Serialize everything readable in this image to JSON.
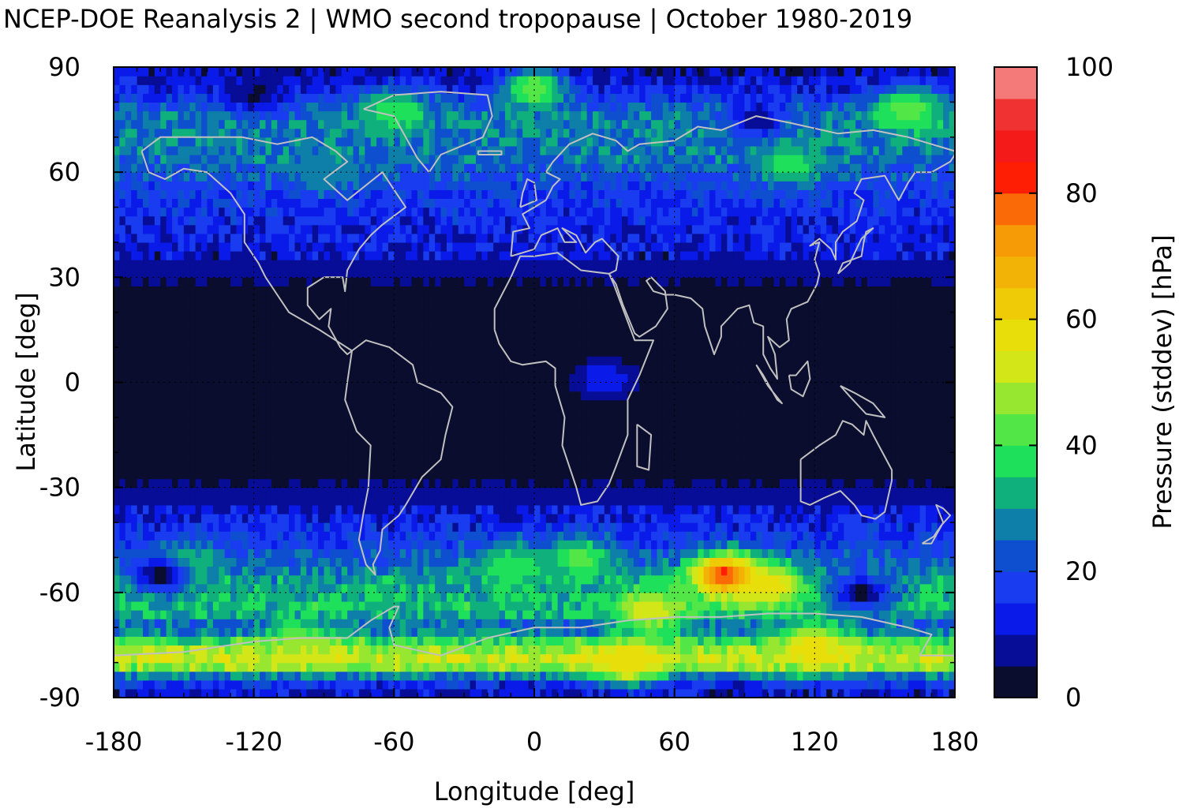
{
  "chart_data": {
    "type": "heatmap",
    "title": "NCEP-DOE Reanalysis 2 | WMO second tropopause | October 1980-2019",
    "xlabel": "Longitude [deg]",
    "ylabel": "Latitude [deg]",
    "colorbar_label": "Pressure (stddev) [hPa]",
    "xlim": [
      -180,
      180
    ],
    "ylim": [
      -90,
      90
    ],
    "x_ticks": [
      "-180",
      "-120",
      "-60",
      "0",
      "60",
      "120",
      "180"
    ],
    "y_ticks": [
      "90",
      "60",
      "30",
      "0",
      "-30",
      "-60",
      "-90"
    ],
    "colorbar_range": [
      0,
      100
    ],
    "colorbar_ticks": [
      "100",
      "80",
      "60",
      "40",
      "20",
      "0"
    ],
    "colorbar_step": 5,
    "colorbar_colors": [
      "#0b0d2e",
      "#070d96",
      "#0a1ae8",
      "#1a3cf0",
      "#0e4fd0",
      "#0d7fa8",
      "#10b07c",
      "#1fe05a",
      "#52e646",
      "#97e630",
      "#d2e618",
      "#e8df0a",
      "#eecb06",
      "#f2b206",
      "#f69a06",
      "#fa6a06",
      "#fe1e04",
      "#f41a1a",
      "#f03232",
      "#f47a7a",
      "#fcc8c8"
    ],
    "grid": true,
    "coastline_color": "#c0c0c0",
    "field_zonal_profile": [
      {
        "lat": -90,
        "value": 8
      },
      {
        "lat": -85,
        "value": 18
      },
      {
        "lat": -80,
        "value": 55
      },
      {
        "lat": -75,
        "value": 45
      },
      {
        "lat": -70,
        "value": 22
      },
      {
        "lat": -65,
        "value": 35
      },
      {
        "lat": -60,
        "value": 32
      },
      {
        "lat": -55,
        "value": 30
      },
      {
        "lat": -50,
        "value": 22
      },
      {
        "lat": -45,
        "value": 18
      },
      {
        "lat": -40,
        "value": 14
      },
      {
        "lat": -35,
        "value": 10
      },
      {
        "lat": -30,
        "value": 6
      },
      {
        "lat": -25,
        "value": 2
      },
      {
        "lat": 0,
        "value": 1
      },
      {
        "lat": 25,
        "value": 2
      },
      {
        "lat": 30,
        "value": 6
      },
      {
        "lat": 35,
        "value": 10
      },
      {
        "lat": 45,
        "value": 14
      },
      {
        "lat": 55,
        "value": 18
      },
      {
        "lat": 65,
        "value": 26
      },
      {
        "lat": 75,
        "value": 28
      },
      {
        "lat": 85,
        "value": 12
      },
      {
        "lat": 90,
        "value": 8
      }
    ],
    "field_hotspots": [
      {
        "lon": 82,
        "lat": -55,
        "value": 85
      },
      {
        "lon": 100,
        "lat": -58,
        "value": 60
      },
      {
        "lon": 50,
        "lat": -65,
        "value": 55
      },
      {
        "lon": 40,
        "lat": -80,
        "value": 60
      },
      {
        "lon": 120,
        "lat": -75,
        "value": 58
      },
      {
        "lon": -100,
        "lat": -75,
        "value": 50
      },
      {
        "lon": 20,
        "lat": -50,
        "value": 42
      },
      {
        "lon": -10,
        "lat": -52,
        "value": 40
      },
      {
        "lon": -150,
        "lat": -52,
        "value": 38
      },
      {
        "lon": -60,
        "lat": 78,
        "value": 40
      },
      {
        "lon": 0,
        "lat": 84,
        "value": 45
      },
      {
        "lon": 160,
        "lat": 78,
        "value": 45
      },
      {
        "lon": 110,
        "lat": 62,
        "value": 38
      },
      {
        "lon": -90,
        "lat": 60,
        "value": 30
      },
      {
        "lon": 30,
        "lat": 1,
        "value": 14
      }
    ],
    "field_lowspots": [
      {
        "lon": -160,
        "lat": -55,
        "value": 2
      },
      {
        "lon": 140,
        "lat": -60,
        "value": 2
      },
      {
        "lon": 95,
        "lat": 75,
        "value": 4
      },
      {
        "lon": -120,
        "lat": 82,
        "value": 4
      }
    ]
  }
}
